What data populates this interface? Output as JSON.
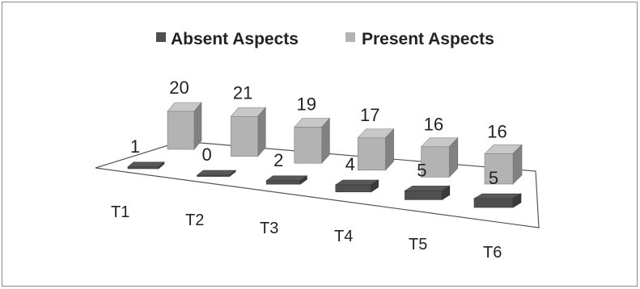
{
  "chart_data": {
    "type": "bar",
    "subtype": "3d-clustered-column",
    "title": "",
    "xlabel": "",
    "ylabel": "",
    "categories": [
      "T1",
      "T2",
      "T3",
      "T4",
      "T5",
      "T6"
    ],
    "series": [
      {
        "name": "Absent Aspects",
        "values": [
          1,
          0,
          2,
          4,
          5,
          5
        ],
        "color": "#4f4f4f"
      },
      {
        "name": "Present Aspects",
        "values": [
          20,
          21,
          19,
          17,
          16,
          16
        ],
        "color": "#b3b3b3"
      }
    ],
    "data_labels": true,
    "legend_position": "top",
    "grid": false
  }
}
